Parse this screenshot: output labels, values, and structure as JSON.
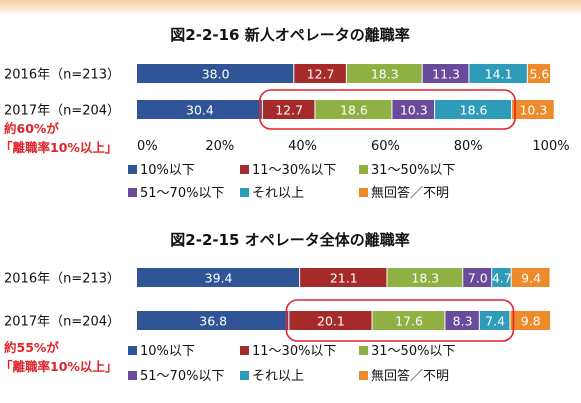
{
  "chart_data": [
    {
      "type": "bar",
      "stacked": true,
      "orientation": "horizontal",
      "title": "図2-2-16 新人オペレータの離職率",
      "categories": [
        "2016年（n=213）",
        "2017年（n=204）"
      ],
      "series": [
        {
          "name": "10%以下",
          "values": [
            38.0,
            30.4
          ],
          "labels": [
            "38.0",
            "30.4"
          ],
          "color": "#2f5597"
        },
        {
          "name": "11～30%以下",
          "values": [
            12.7,
            12.7
          ],
          "labels": [
            "12.7",
            "12.7"
          ],
          "color": "#a52a2a"
        },
        {
          "name": "31～50%以下",
          "values": [
            18.3,
            18.6
          ],
          "labels": [
            "18.3",
            "18.6"
          ],
          "color": "#8fb043"
        },
        {
          "name": "51～70%以下",
          "values": [
            11.3,
            10.3
          ],
          "labels": [
            "11.3",
            "10.3"
          ],
          "color": "#6a4a9a"
        },
        {
          "name": "それ以上",
          "values": [
            14.1,
            18.6
          ],
          "labels": [
            "14.1",
            "18.6"
          ],
          "color": "#2e9cb8"
        },
        {
          "name": "無回答／不明",
          "values": [
            5.6,
            10.3
          ],
          "labels": [
            "5.6",
            "10.3"
          ],
          "color": "#ed8a2a"
        }
      ],
      "xlim": [
        0,
        100
      ],
      "xticks": [
        "0%",
        "20%",
        "40%",
        "60%",
        "80%",
        "100%"
      ],
      "legend_position": "bottom",
      "highlight": {
        "row": 1,
        "series_from": 1,
        "series_to": 4
      },
      "annotation": {
        "line1": "約60%が",
        "line2": "「離職率10%以上」"
      }
    },
    {
      "type": "bar",
      "stacked": true,
      "orientation": "horizontal",
      "title": "図2-2-15 オペレータ全体の離職率",
      "categories": [
        "2016年（n=213）",
        "2017年（n=204）"
      ],
      "series": [
        {
          "name": "10%以下",
          "values": [
            39.4,
            36.8
          ],
          "labels": [
            "39.4",
            "36.8"
          ],
          "color": "#2f5597"
        },
        {
          "name": "11～30%以下",
          "values": [
            21.1,
            20.1
          ],
          "labels": [
            "21.1",
            "20.1"
          ],
          "color": "#a52a2a"
        },
        {
          "name": "31～50%以下",
          "values": [
            18.3,
            17.6
          ],
          "labels": [
            "18.3",
            "17.6"
          ],
          "color": "#8fb043"
        },
        {
          "name": "51～70%以下",
          "values": [
            7.0,
            8.3
          ],
          "labels": [
            "7.0",
            "8.3"
          ],
          "color": "#6a4a9a"
        },
        {
          "name": "それ以上",
          "values": [
            4.7,
            7.4
          ],
          "labels": [
            "4.7",
            "7.4"
          ],
          "color": "#2e9cb8"
        },
        {
          "name": "無回答／不明",
          "values": [
            9.4,
            9.8
          ],
          "labels": [
            "9.4",
            "9.8"
          ],
          "color": "#ed8a2a"
        }
      ],
      "xlim": [
        0,
        100
      ],
      "legend_position": "bottom",
      "highlight": {
        "row": 1,
        "series_from": 1,
        "series_to": 4
      },
      "annotation": {
        "line1": "約55%が",
        "line2": "「離職率10%以上」"
      }
    }
  ],
  "colors": {
    "highlight_box": "#e0242b",
    "annotation_text": "#e0242b",
    "band": "#f6cfa6"
  }
}
